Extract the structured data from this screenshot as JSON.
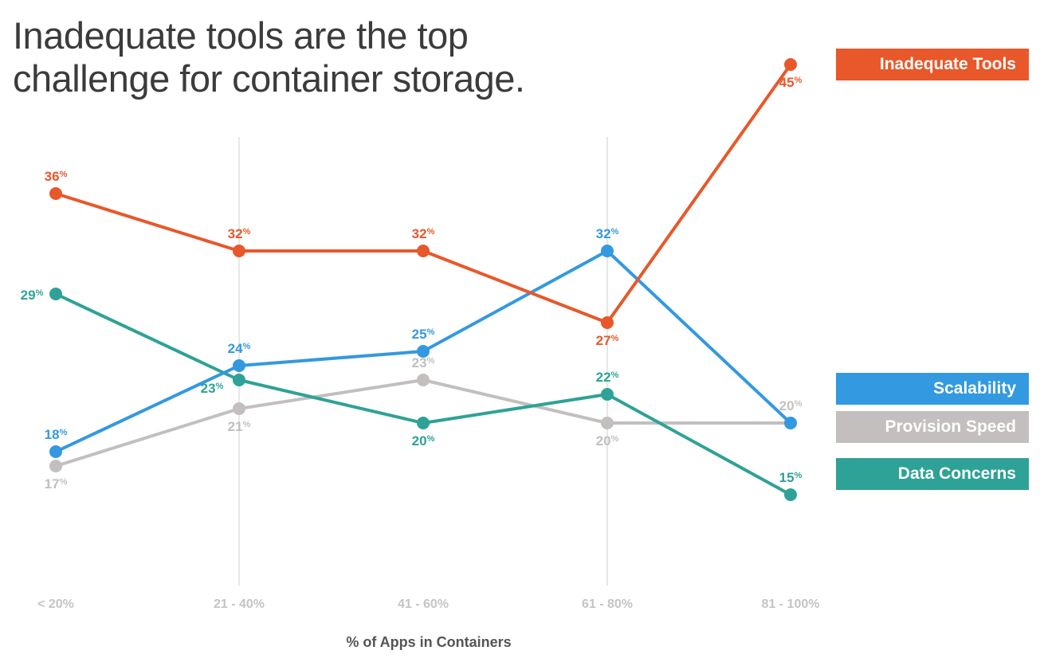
{
  "title_lines": [
    "Inadequate tools are the top",
    "challenge for container storage."
  ],
  "chart_data": {
    "type": "line",
    "title": "Inadequate tools are the top challenge for container storage.",
    "xlabel": "% of Apps in Containers",
    "ylabel": "",
    "categories": [
      "< 20%",
      "21 - 40%",
      "41 - 60%",
      "61 - 80%",
      "81 - 100%"
    ],
    "value_suffix": "%",
    "ylim": [
      8,
      50
    ],
    "grid": "vertical lines at 21 - 40% and 61 - 80%",
    "legend": "right",
    "series": [
      {
        "name": "Inadequate Tools",
        "color": "#e8582a",
        "values": [
          36,
          32,
          32,
          27,
          45
        ],
        "label_pos": [
          "above",
          "above",
          "above",
          "below",
          "below"
        ]
      },
      {
        "name": "Scalability",
        "color": "#3399e0",
        "values": [
          18,
          24,
          25,
          32,
          20
        ],
        "label_pos": [
          "above",
          "above",
          "above",
          "above",
          "none"
        ]
      },
      {
        "name": "Provision Speed",
        "color": "#c2bfbe",
        "values": [
          17,
          21,
          23,
          20,
          20
        ],
        "label_pos": [
          "below",
          "below",
          "above",
          "below",
          "above"
        ]
      },
      {
        "name": "Data Concerns",
        "color": "#2ea296",
        "values": [
          29,
          23,
          20,
          22,
          15
        ],
        "label_pos": [
          "left",
          "left-below",
          "below",
          "above",
          "above"
        ]
      }
    ]
  }
}
